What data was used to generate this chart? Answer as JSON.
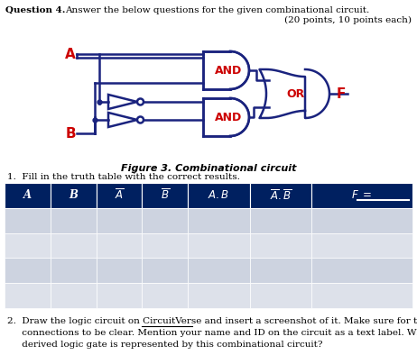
{
  "title_q": "Question 4.",
  "title_text": "Answer the below questions for the given combinational circuit.",
  "subtitle": "(20 points, 10 points each)",
  "fig_caption": "Figure 3. Combinational circuit",
  "item1": "1.  Fill in the truth table with the correct results.",
  "header_bg": "#002060",
  "row_color1": "#cdd3e0",
  "row_color2": "#dde1ea",
  "gate_color": "#1a237e",
  "gate_label_color": "#cc0000",
  "input_label_color": "#cc0000",
  "output_label_color": "#cc0000",
  "bg_color": "#ffffff",
  "text_color": "#000000"
}
